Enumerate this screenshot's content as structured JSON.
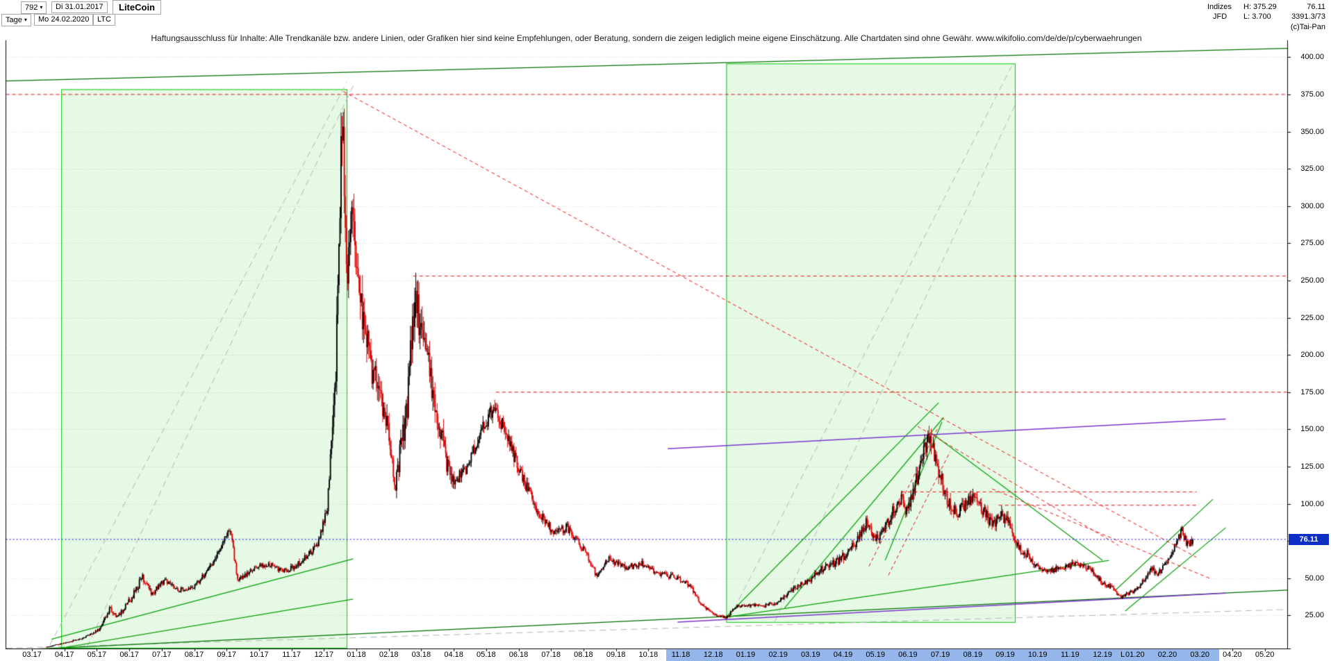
{
  "header": {
    "bar_count": "792",
    "start_date": "Di 31.01.2017",
    "instrument": "LiteCoin",
    "timeframe": "Tage",
    "end_date": "Mo 24.02.2020",
    "symbol": "LTC",
    "indizes_label": "Indizes",
    "high_value": "H: 375.29",
    "last_price": "76.11",
    "broker_label": "JFD",
    "low_value": "L: 3.700",
    "secondary_value": "3391.3/73",
    "copyright": "(c)Tai-Pan"
  },
  "icons": {
    "caret_down": "▾"
  },
  "disclaimer": "Haftungsausschluss für Inhalte: Alle Trendkanäle bzw. andere Linien, oder Grafiken hier sind keine Empfehlungen, oder Beratung, sondern die zeigen lediglich meine eigene Einschätzung. Alle Chartdaten sind ohne Gewähr.  www.wikifolio.com/de/de/p/cyberwaehrungen",
  "chart_data": {
    "type": "candlestick",
    "title": "LiteCoin",
    "symbol": "LTC",
    "timeframe": "Tage",
    "range": {
      "from": "Di 31.01.2017",
      "to": "Mo 24.02.2020"
    },
    "last_price": 76.11,
    "last_price_label": "76.11",
    "period_high": 375.29,
    "period_low": 3.7,
    "y_axis": {
      "side": "right",
      "min": 0,
      "max": 410,
      "ticks": [
        400,
        375,
        350,
        325,
        300,
        275,
        250,
        225,
        200,
        175,
        150,
        125,
        100,
        75,
        50,
        25
      ],
      "grid": true
    },
    "x_axis": {
      "labels": [
        "03.17",
        "04.17",
        "05.17",
        "06.17",
        "07.17",
        "08.17",
        "09.17",
        "10.17",
        "11.17",
        "12.17",
        "01.18",
        "02.18",
        "03.18",
        "04.18",
        "05.18",
        "06.18",
        "07.18",
        "08.18",
        "09.18",
        "10.18",
        "11.18",
        "12.18",
        "01.19",
        "02.19",
        "03.19",
        "04.19",
        "05.19",
        "06.19",
        "07.19",
        "08.19",
        "09.19",
        "10.19",
        "11.19",
        "12.19",
        "01.20",
        "02.20",
        "03.20",
        "04.20",
        "05.20"
      ],
      "marker": {
        "label": "L",
        "month_index": 33.6
      },
      "highlight": {
        "from_index": 19.55,
        "to_index": 36.6,
        "color": "#95b6ea"
      }
    },
    "series_start": 0.45,
    "series_end": 35.79,
    "price_anchors": [
      [
        0.45,
        3.9
      ],
      [
        1.0,
        6.5
      ],
      [
        1.6,
        10
      ],
      [
        2.1,
        16
      ],
      [
        2.4,
        30
      ],
      [
        2.65,
        24
      ],
      [
        3.1,
        38
      ],
      [
        3.4,
        51
      ],
      [
        3.7,
        40
      ],
      [
        4.1,
        49
      ],
      [
        4.5,
        42
      ],
      [
        5.0,
        44
      ],
      [
        5.6,
        60
      ],
      [
        6.1,
        84
      ],
      [
        6.35,
        48
      ],
      [
        6.8,
        56
      ],
      [
        7.3,
        60
      ],
      [
        7.8,
        54
      ],
      [
        8.3,
        61
      ],
      [
        8.8,
        72
      ],
      [
        9.1,
        98
      ],
      [
        9.35,
        180
      ],
      [
        9.58,
        370
      ],
      [
        9.7,
        245
      ],
      [
        9.85,
        290
      ],
      [
        10.1,
        235
      ],
      [
        10.5,
        190
      ],
      [
        10.9,
        160
      ],
      [
        11.2,
        115
      ],
      [
        11.55,
        160
      ],
      [
        11.8,
        242
      ],
      [
        12.1,
        205
      ],
      [
        12.5,
        158
      ],
      [
        12.9,
        115
      ],
      [
        13.3,
        120
      ],
      [
        13.9,
        150
      ],
      [
        14.25,
        167
      ],
      [
        14.7,
        142
      ],
      [
        15.1,
        118
      ],
      [
        15.6,
        95
      ],
      [
        16.1,
        80
      ],
      [
        16.5,
        84
      ],
      [
        17.0,
        70
      ],
      [
        17.4,
        52
      ],
      [
        17.8,
        63
      ],
      [
        18.3,
        57
      ],
      [
        18.8,
        60
      ],
      [
        19.3,
        53
      ],
      [
        19.8,
        51
      ],
      [
        20.3,
        45
      ],
      [
        20.6,
        33
      ],
      [
        21.1,
        25
      ],
      [
        21.4,
        23.5
      ],
      [
        21.7,
        31
      ],
      [
        22.1,
        32
      ],
      [
        22.6,
        31.5
      ],
      [
        23.0,
        34
      ],
      [
        23.5,
        43
      ],
      [
        23.9,
        48
      ],
      [
        24.4,
        57
      ],
      [
        24.9,
        62
      ],
      [
        25.4,
        74
      ],
      [
        25.75,
        89
      ],
      [
        26.0,
        75
      ],
      [
        26.4,
        88
      ],
      [
        26.75,
        104
      ],
      [
        27.0,
        94
      ],
      [
        27.25,
        115
      ],
      [
        27.55,
        138
      ],
      [
        27.7,
        144
      ],
      [
        27.95,
        123
      ],
      [
        28.2,
        104
      ],
      [
        28.5,
        94
      ],
      [
        28.8,
        100
      ],
      [
        29.05,
        106
      ],
      [
        29.3,
        96
      ],
      [
        29.6,
        86
      ],
      [
        29.85,
        92
      ],
      [
        30.1,
        88
      ],
      [
        30.4,
        70
      ],
      [
        30.7,
        66
      ],
      [
        31.0,
        57
      ],
      [
        31.4,
        55
      ],
      [
        31.8,
        58
      ],
      [
        32.2,
        60
      ],
      [
        32.6,
        56
      ],
      [
        33.0,
        47
      ],
      [
        33.3,
        44
      ],
      [
        33.55,
        37
      ],
      [
        33.8,
        40
      ],
      [
        34.1,
        43
      ],
      [
        34.5,
        57
      ],
      [
        34.7,
        53
      ],
      [
        34.9,
        58
      ],
      [
        35.1,
        65
      ],
      [
        35.3,
        74
      ],
      [
        35.45,
        83
      ],
      [
        35.6,
        72
      ],
      [
        35.79,
        76.11
      ]
    ],
    "boxes": [
      {
        "m1": 0.9,
        "p1": 3.3,
        "m2": 9.7,
        "p2": 378.5
      },
      {
        "m1": 21.4,
        "p1": 20.6,
        "m2": 30.3,
        "p2": 395.8
      }
    ],
    "lines": [
      {
        "m1": 0.55,
        "p1": 5,
        "m2": 9.7,
        "p2": 383,
        "color": "gray",
        "dash": "dash",
        "w": 1,
        "z": "under"
      },
      {
        "m1": 1.7,
        "p1": 4,
        "m2": 9.95,
        "p2": 383,
        "color": "gray",
        "dash": "dash",
        "w": 1,
        "z": "under"
      },
      {
        "m1": 21.5,
        "p1": 23,
        "m2": 30.2,
        "p2": 394,
        "color": "gray",
        "dash": "dash",
        "w": 1,
        "z": "under"
      },
      {
        "m1": 22.9,
        "p1": 21,
        "m2": 30.35,
        "p2": 370,
        "color": "gray",
        "dash": "dash",
        "w": 1,
        "z": "under"
      },
      {
        "m1": -0.8,
        "p1": 3,
        "m2": 38.7,
        "p2": 29,
        "color": "gray",
        "dash": "dash",
        "w": 1,
        "z": "under"
      },
      {
        "m1": -0.8,
        "p1": 384,
        "m2": 38.7,
        "p2": 406,
        "color": "darkgreen",
        "dash": "solid",
        "w": 1.3,
        "z": "under"
      },
      {
        "m1": -0.8,
        "p1": 1.5,
        "m2": 38.7,
        "p2": 42,
        "color": "darkgreen",
        "dash": "solid",
        "w": 1.3,
        "z": "under"
      },
      {
        "m1": 0.6,
        "p1": 9,
        "m2": 9.9,
        "p2": 63,
        "color": "green",
        "dash": "solid",
        "w": 1.2,
        "z": "under"
      },
      {
        "m1": 0.6,
        "p1": 2,
        "m2": 9.9,
        "p2": 36,
        "color": "green",
        "dash": "solid",
        "w": 1.2,
        "z": "under"
      },
      {
        "m1": 21.3,
        "p1": 23.5,
        "m2": 33.2,
        "p2": 62,
        "color": "green",
        "dash": "solid",
        "w": 1.2,
        "z": "under"
      },
      {
        "m1": 21.4,
        "p1": 24,
        "m2": 27.95,
        "p2": 168,
        "color": "green",
        "dash": "solid",
        "w": 1.2,
        "z": "under"
      },
      {
        "m1": 23.2,
        "p1": 30,
        "m2": 28.1,
        "p2": 158,
        "color": "green",
        "dash": "solid",
        "w": 1.2,
        "z": "under"
      },
      {
        "m1": 26.3,
        "p1": 62,
        "m2": 28.05,
        "p2": 155,
        "color": "green",
        "dash": "solid",
        "w": 1.2,
        "z": "under"
      },
      {
        "m1": 27.7,
        "p1": 148,
        "m2": 33.0,
        "p2": 62,
        "color": "green",
        "dash": "solid",
        "w": 1.2,
        "z": "under"
      },
      {
        "m1": 33.4,
        "p1": 42,
        "m2": 36.4,
        "p2": 103,
        "color": "green",
        "dash": "solid",
        "w": 1.2,
        "z": "under"
      },
      {
        "m1": 33.7,
        "p1": 28,
        "m2": 36.8,
        "p2": 84,
        "color": "green",
        "dash": "solid",
        "w": 1.2,
        "z": "under"
      },
      {
        "m1": -0.8,
        "p1": 375,
        "m2": 38.7,
        "p2": 375,
        "color": "red",
        "dash": "dash2",
        "w": 1,
        "z": "over"
      },
      {
        "m1": 11.75,
        "p1": 253,
        "m2": 38.7,
        "p2": 253,
        "color": "red",
        "dash": "dash2",
        "w": 1,
        "z": "over"
      },
      {
        "m1": 14.3,
        "p1": 175,
        "m2": 38.7,
        "p2": 175,
        "color": "red",
        "dash": "dash2",
        "w": 1,
        "z": "over"
      },
      {
        "m1": 26.8,
        "p1": 108,
        "m2": 35.9,
        "p2": 108,
        "color": "red",
        "dash": "dash2",
        "w": 1,
        "z": "over"
      },
      {
        "m1": 29.8,
        "p1": 99,
        "m2": 35.9,
        "p2": 99,
        "color": "red",
        "dash": "dash2",
        "w": 1,
        "z": "over"
      },
      {
        "m1": 9.6,
        "p1": 377,
        "m2": 35.9,
        "p2": 64,
        "color": "red",
        "dash": "dash2",
        "w": 1,
        "z": "over"
      },
      {
        "m1": 27.3,
        "p1": 152,
        "m2": 33.5,
        "p2": 72,
        "color": "red",
        "dash": "dash2",
        "w": 1,
        "z": "over"
      },
      {
        "m1": 25.8,
        "p1": 58,
        "m2": 27.9,
        "p2": 150,
        "color": "red",
        "dash": "dash2",
        "w": 1,
        "z": "over"
      },
      {
        "m1": 26.4,
        "p1": 52,
        "m2": 28.3,
        "p2": 135,
        "color": "red",
        "dash": "dash2",
        "w": 1,
        "z": "over"
      },
      {
        "m1": 29.6,
        "p1": 110,
        "m2": 36.3,
        "p2": 50,
        "color": "red",
        "dash": "dash2",
        "w": 1,
        "z": "over"
      },
      {
        "m1": 19.6,
        "p1": 137,
        "m2": 36.8,
        "p2": 157,
        "color": "purple",
        "dash": "solid",
        "w": 1.5,
        "z": "under"
      },
      {
        "m1": 19.9,
        "p1": 20.5,
        "m2": 36.8,
        "p2": 40,
        "color": "purple",
        "dash": "solid",
        "w": 1.5,
        "z": "under"
      },
      {
        "m1": -0.8,
        "p1": 76.11,
        "m2": 38.8,
        "p2": 76.11,
        "color": "blue",
        "dash": "dot",
        "w": 1,
        "z": "over"
      }
    ],
    "colors": {
      "up": "#000000",
      "down": "#e00000",
      "box": "#00c800",
      "box_fill": "rgba(0,200,0,0.10)",
      "gray": "#b4b4b4",
      "green": "#00a000",
      "darkgreen": "#007000",
      "red": "#f01010",
      "purple": "#7a35cc",
      "blue": "#0000ff",
      "grid": "#d2d2d2",
      "axis": "#000000",
      "tag_bg": "#0d2fc4"
    }
  }
}
